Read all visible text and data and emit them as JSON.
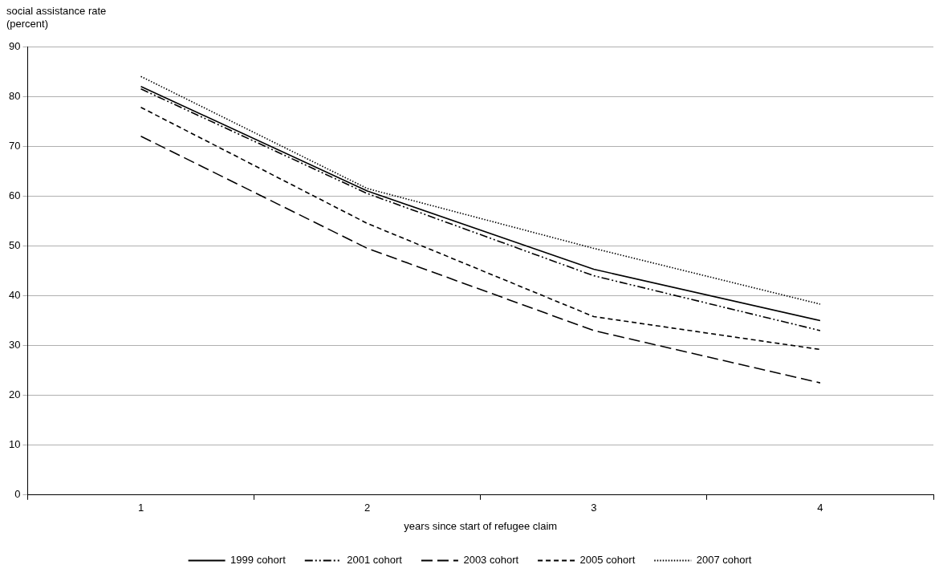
{
  "chart_data": {
    "type": "line",
    "ylabel": "social assistance rate\n(percent)",
    "xlabel": "years since start of refugee claim",
    "categories": [
      "1",
      "2",
      "3",
      "4"
    ],
    "ylim": [
      0,
      90
    ],
    "yticks": [
      0,
      10,
      20,
      30,
      40,
      50,
      60,
      70,
      80,
      90
    ],
    "grid": "y",
    "legend": "bottom",
    "marker": "none",
    "series": [
      {
        "name": "1999 cohort",
        "color": "#000000",
        "line_style": "solid",
        "values": [
          82,
          61,
          45.3,
          35
        ]
      },
      {
        "name": "2001 cohort",
        "color": "#000000",
        "line_style": "dashdotdot",
        "values": [
          81.5,
          60.5,
          44,
          33
        ]
      },
      {
        "name": "2003 cohort",
        "color": "#000000",
        "line_style": "longdash",
        "values": [
          72,
          49.5,
          33,
          22.5
        ]
      },
      {
        "name": "2005 cohort",
        "color": "#000000",
        "line_style": "dashed",
        "values": [
          77.8,
          54.5,
          35.8,
          29.2
        ]
      },
      {
        "name": "2007 cohort",
        "color": "#000000",
        "line_style": "dotted",
        "values": [
          84,
          61.5,
          49.5,
          38.3
        ]
      }
    ]
  }
}
